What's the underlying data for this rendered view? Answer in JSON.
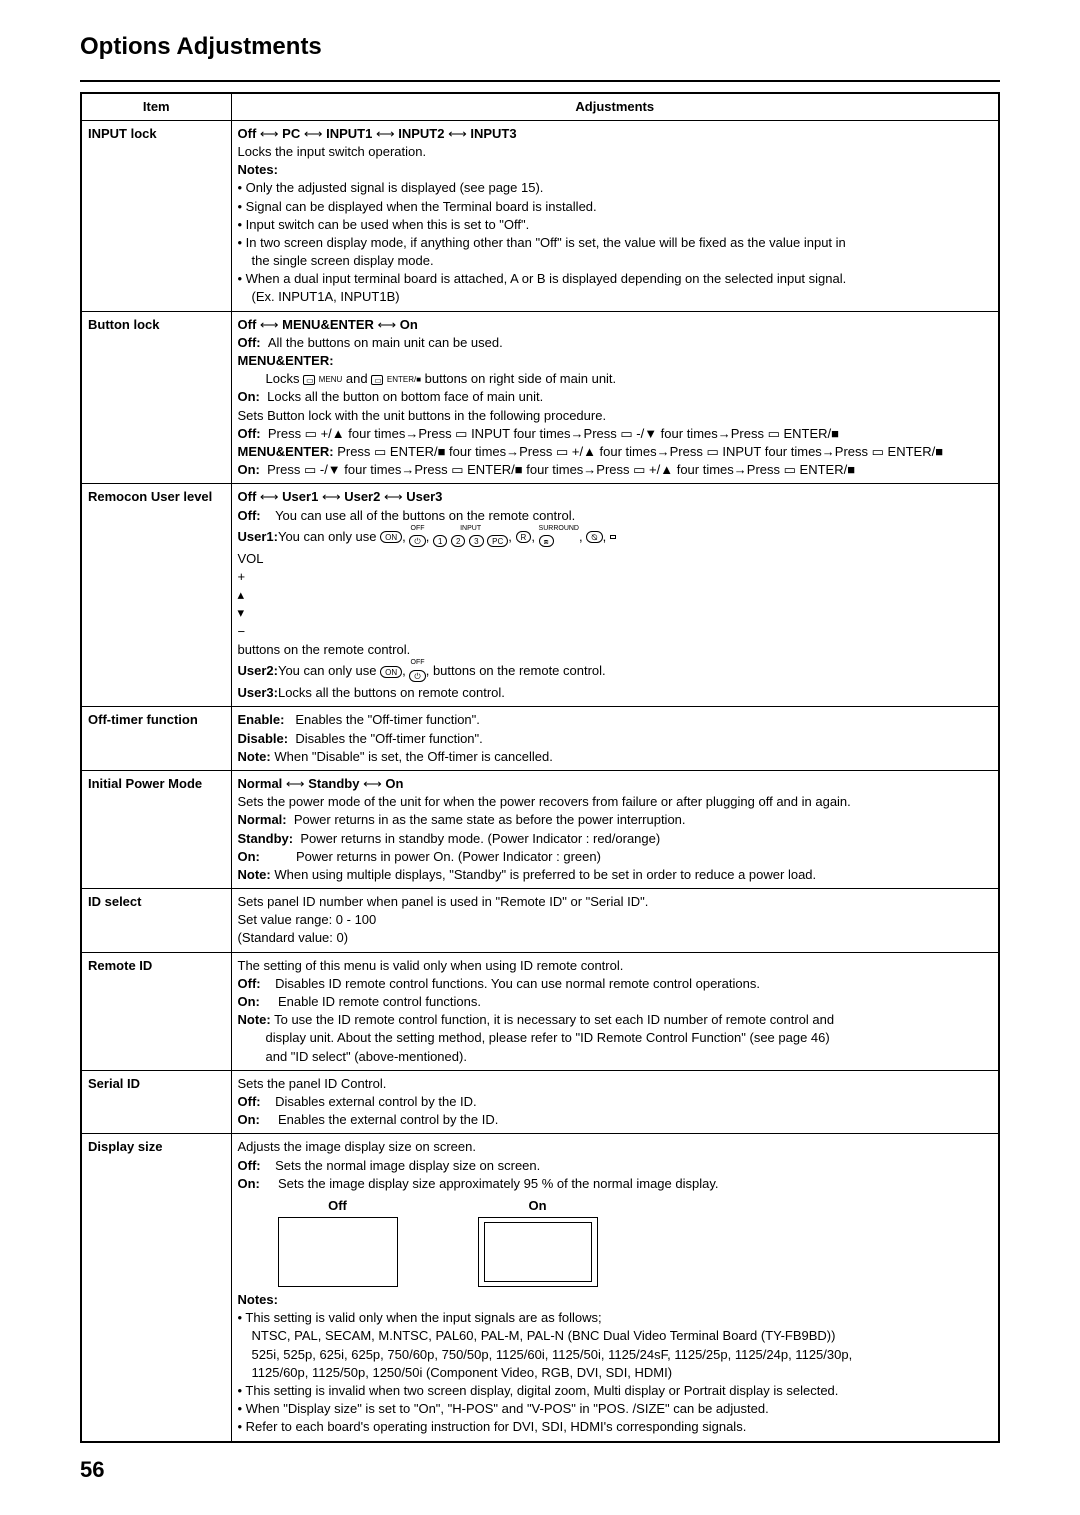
{
  "page_title": "Options Adjustments",
  "page_number": "56",
  "headers": {
    "item": "Item",
    "adjustments": "Adjustments"
  },
  "arrows": {
    "a2": "⟷",
    "a3": "⟷"
  },
  "input_lock": {
    "item": "INPUT lock",
    "opts_line": [
      "Off",
      "PC",
      "INPUT1",
      "INPUT2",
      "INPUT3"
    ],
    "line1": "Locks the input switch operation.",
    "notes_label": "Notes:",
    "b1": "• Only the adjusted signal is displayed (see page 15).",
    "b2": "• Signal can be displayed when the Terminal board is installed.",
    "b3": "• Input switch can be used when this is set to \"Off\".",
    "b4a": "• In two screen display mode, if anything other than \"Off\" is set, the value will be fixed as the value input in",
    "b4b": "the single screen display mode.",
    "b5a": "• When a dual input terminal board is attached, A or B is displayed depending on the selected input signal.",
    "b5b": "(Ex. INPUT1A, INPUT1B)"
  },
  "button_lock": {
    "item": "Button lock",
    "opts_line": [
      "Off",
      "MENU&ENTER",
      "On"
    ],
    "off_lbl": "Off:",
    "off_txt": "All the buttons on main unit can be used.",
    "me_lbl": "MENU&ENTER:",
    "me_txt_a": "Locks",
    "me_txt_b": "and",
    "me_txt_c": "buttons on right side of main unit.",
    "on_lbl": "On:",
    "on_txt": "Locks all the button on bottom face of main unit.",
    "line2": "Sets Button lock with the unit buttons in the following procedure.",
    "seq_off_lbl": "Off:",
    "seq_off": "Press ▭ +/▲ four times→Press ▭ INPUT four times→Press ▭ -/▼ four times→Press ▭ ENTER/■",
    "seq_me_lbl": "MENU&ENTER:",
    "seq_me": "Press ▭ ENTER/■ four times→Press ▭ +/▲ four times→Press ▭ INPUT four times→Press ▭ ENTER/■",
    "seq_on_lbl": "On:",
    "seq_on": "Press ▭ -/▼ four times→Press ▭ ENTER/■ four times→Press ▭ +/▲ four times→Press ▭ ENTER/■",
    "btn_menu": "MENU",
    "btn_enter": "ENTER/■"
  },
  "remocon": {
    "item": "Remocon User level",
    "opts_line": [
      "Off",
      "User1",
      "User2",
      "User3"
    ],
    "off_lbl": "Off:",
    "off_txt": "You can use all of the buttons on the remote control.",
    "u1_lbl": "User1:",
    "u1_txt": "You can only use",
    "u1_end": "buttons on the remote control.",
    "u2_lbl": "User2:",
    "u2_txt": "You can only use",
    "u2_end": "buttons on the remote control.",
    "u3_lbl": "User3:",
    "u3_txt": "Locks all the buttons on remote control.",
    "rc": {
      "on": "ON",
      "off": "OFF",
      "input": "INPUT",
      "n1": "1",
      "n2": "2",
      "n3": "3",
      "pc": "PC",
      "recall": "R",
      "surround": "SURROUND",
      "mute": "⦰",
      "aspect": "⧈",
      "vol": "VOL",
      "plus": "+",
      "up": "▴",
      "dn": "▾",
      "minus": "−"
    }
  },
  "off_timer": {
    "item": "Off-timer function",
    "en_lbl": "Enable:",
    "en_txt": "Enables the \"Off-timer function\".",
    "dis_lbl": "Disable:",
    "dis_txt": "Disables the \"Off-timer function\".",
    "note_lbl": "Note:",
    "note_txt": "When \"Disable\" is set, the Off-timer is cancelled."
  },
  "ipm": {
    "item": "Initial Power Mode",
    "opts_line": [
      "Normal",
      "Standby",
      "On"
    ],
    "line1": "Sets the power mode of the unit for when the power recovers from failure or after plugging off and in again.",
    "n_lbl": "Normal:",
    "n_txt": "Power returns in as the same state as before the power interruption.",
    "s_lbl": "Standby:",
    "s_txt": "Power returns in standby mode. (Power Indicator : red/orange)",
    "o_lbl": "On:",
    "o_txt": "Power returns in power On. (Power Indicator : green)",
    "note_lbl": "Note:",
    "note_txt": "When using multiple displays, \"Standby\" is preferred to be set in order to reduce a power load."
  },
  "id_select": {
    "item": "ID select",
    "l1": "Sets panel ID number when panel is used in \"Remote ID\" or \"Serial ID\".",
    "l2": "Set value range: 0 - 100",
    "l3": "(Standard value: 0)"
  },
  "remote_id": {
    "item": "Remote ID",
    "l1": "The setting of this menu is valid only when using ID remote control.",
    "off_lbl": "Off:",
    "off_txt": "Disables ID remote control functions. You can use normal remote control operations.",
    "on_lbl": "On:",
    "on_txt": "Enable ID remote control functions.",
    "note_lbl": "Note:",
    "note_a": "To use the ID remote control function, it is necessary to set each ID number of remote control and",
    "note_b": "display unit. About the setting method, please refer to \"ID Remote Control Function\" (see page 46)",
    "note_c": "and \"ID select\" (above-mentioned)."
  },
  "serial_id": {
    "item": "Serial ID",
    "l1": "Sets the panel ID Control.",
    "off_lbl": "Off:",
    "off_txt": "Disables external control by the ID.",
    "on_lbl": "On:",
    "on_txt": "Enables the external control by the ID."
  },
  "display_size": {
    "item": "Display size",
    "l1": "Adjusts the image display size on screen.",
    "off_lbl": "Off:",
    "off_txt": "Sets the normal image display size on screen.",
    "on_lbl": "On:",
    "on_txt": "Sets the image display size approximately 95 % of the normal image display.",
    "box_off": "Off",
    "box_on": "On",
    "notes_label": "Notes:",
    "b1": "• This setting is valid only when the input signals are as follows;",
    "b1a": "NTSC, PAL, SECAM, M.NTSC, PAL60, PAL-M, PAL-N (BNC Dual Video Terminal Board (TY-FB9BD))",
    "b1b": "525i, 525p, 625i, 625p, 750/60p, 750/50p, 1125/60i, 1125/50i, 1125/24sF, 1125/25p, 1125/24p, 1125/30p,",
    "b1c": "1125/60p, 1125/50p, 1250/50i (Component Video, RGB, DVI, SDI, HDMI)",
    "b2": "• This setting is invalid when two screen display, digital zoom, Multi display or Portrait display is selected.",
    "b3": "• When \"Display size\" is set to \"On\", \"H-POS\" and \"V-POS\" in \"POS. /SIZE\" can be adjusted.",
    "b4": "• Refer to each board's operating instruction for DVI, SDI, HDMI's corresponding signals."
  }
}
